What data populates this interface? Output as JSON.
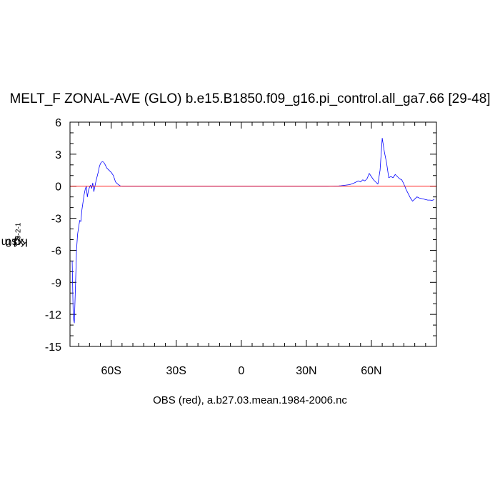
{
  "chart_data": {
    "type": "line",
    "title": "MELT_F ZONAL-AVE (GLO) b.e15.B1850.f09_g16.pi_control.all_ga7.66 [29-48]",
    "ylabel_prefix": "x10",
    "ylabel_exp": "-5",
    "ylabel_unit1": " Kg m",
    "ylabel_exp2": "-2",
    "ylabel_unit2": " s",
    "ylabel_exp3": "-1",
    "caption": "OBS (red), a.b27.03.mean.1984-2006.nc",
    "xlim": [
      -79,
      90
    ],
    "ylim": [
      -15,
      6
    ],
    "x_ticks": [
      {
        "value": -60,
        "label": "60S"
      },
      {
        "value": -30,
        "label": "30S"
      },
      {
        "value": 0,
        "label": "0"
      },
      {
        "value": 30,
        "label": "30N"
      },
      {
        "value": 60,
        "label": "60N"
      }
    ],
    "y_ticks": [
      {
        "value": 6,
        "label": "6"
      },
      {
        "value": 3,
        "label": "3"
      },
      {
        "value": 0,
        "label": "0"
      },
      {
        "value": -3,
        "label": "-3"
      },
      {
        "value": -6,
        "label": "-6"
      },
      {
        "value": -9,
        "label": "-9"
      },
      {
        "value": -12,
        "label": "-12"
      },
      {
        "value": -15,
        "label": "-15"
      }
    ],
    "series": [
      {
        "color": "#0000ff",
        "x": [
          -78,
          -77.5,
          -77,
          -76.5,
          -76,
          -75.5,
          -75,
          -74.5,
          -74,
          -73.5,
          -73,
          -72.5,
          -72,
          -71.5,
          -71,
          -70.5,
          -70,
          -69.5,
          -69,
          -68.5,
          -68,
          -67.5,
          -67,
          -66,
          -65.5,
          -65,
          -64.5,
          -64,
          -63.5,
          -63,
          -62.5,
          -62,
          -61.5,
          -61,
          -60,
          -59,
          -58.5,
          -58,
          -57,
          -56,
          -55,
          -54,
          -53,
          -52,
          -50,
          -45,
          -40,
          -30,
          -20,
          -10,
          0,
          10,
          20,
          30,
          40,
          45,
          46,
          48,
          50,
          52,
          54,
          55,
          56,
          57,
          58,
          59,
          60,
          61,
          62,
          63,
          64,
          65,
          66,
          67,
          68,
          69,
          70,
          71,
          72,
          73,
          74,
          75,
          76,
          77,
          78,
          79,
          80,
          81,
          82,
          83,
          84,
          85,
          86,
          87,
          88,
          89
        ],
        "y": [
          -7,
          -12.3,
          -12.8,
          -9.5,
          -6,
          -4.5,
          -3.8,
          -3.2,
          -3.3,
          -2.2,
          -1.5,
          -0.8,
          -0.3,
          0,
          -1,
          -0.4,
          -0.1,
          0.1,
          -0.2,
          0.3,
          -0.5,
          0,
          0.5,
          1.3,
          1.8,
          2.1,
          2.25,
          2.3,
          2.25,
          2.1,
          1.9,
          1.7,
          1.6,
          1.5,
          1.3,
          1.0,
          0.7,
          0.4,
          0.2,
          0.05,
          0,
          0,
          0,
          0,
          0,
          0,
          0,
          0,
          0,
          0,
          0,
          0,
          0,
          0,
          0,
          0.03,
          0.05,
          0.1,
          0.15,
          0.3,
          0.5,
          0.4,
          0.6,
          0.5,
          0.7,
          1.2,
          0.9,
          0.6,
          0.4,
          0.2,
          1.5,
          4.5,
          3.2,
          2.2,
          0.8,
          0.9,
          0.8,
          1.1,
          0.9,
          0.7,
          0.6,
          0.2,
          -0.3,
          -0.7,
          -1.1,
          -1.4,
          -1.2,
          -1.0,
          -1.1,
          -1.15,
          -1.2,
          -1.25,
          -1.3,
          -1.3,
          -1.32,
          -1.25
        ]
      },
      {
        "color": "#ff0000",
        "x": [
          -79,
          90
        ],
        "y": [
          0,
          0
        ]
      }
    ]
  }
}
